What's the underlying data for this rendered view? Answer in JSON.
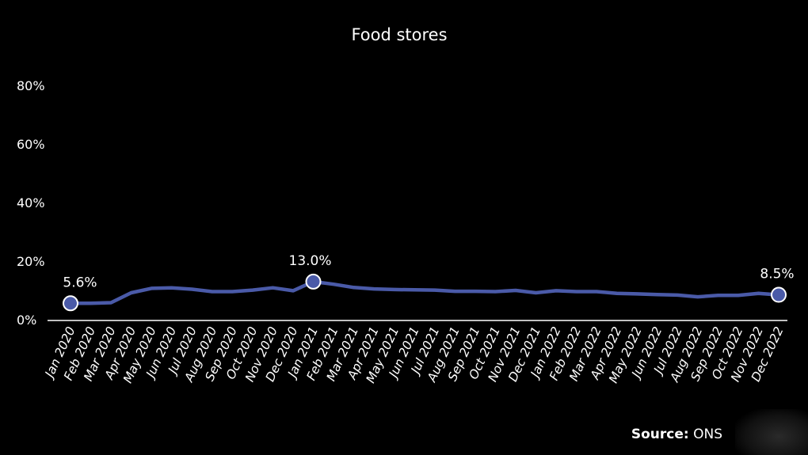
{
  "chart_data": {
    "type": "line",
    "title": "Food stores",
    "xlabel": "",
    "ylabel": "",
    "ylim": [
      0,
      80
    ],
    "yticks": [
      "0%",
      "20%",
      "40%",
      "60%",
      "80%"
    ],
    "grid": false,
    "categories": [
      "Jan 2020",
      "Feb 2020",
      "Mar 2020",
      "Apr 2020",
      "May 2020",
      "Jun 2020",
      "Jul 2020",
      "Aug 2020",
      "Sep 2020",
      "Oct 2020",
      "Nov 2020",
      "Dec 2020",
      "Jan 2021",
      "Feb 2021",
      "Mar 2021",
      "Apr 2021",
      "May 2021",
      "Jun 2021",
      "Jul 2021",
      "Aug 2021",
      "Sep 2021",
      "Oct 2021",
      "Nov 2021",
      "Dec 2021",
      "Jan 2022",
      "Feb 2022",
      "Mar 2022",
      "Apr 2022",
      "May 2022",
      "Jun 2022",
      "Jul 2022",
      "Aug 2022",
      "Sep 2022",
      "Oct 2022",
      "Nov 2022",
      "Dec 2022"
    ],
    "series": [
      {
        "color": "#4a5aa8",
        "values": [
          5.6,
          5.6,
          5.8,
          9.2,
          10.7,
          10.9,
          10.4,
          9.6,
          9.6,
          10.1,
          10.9,
          9.9,
          13.0,
          12.1,
          11.0,
          10.5,
          10.3,
          10.2,
          10.1,
          9.7,
          9.7,
          9.6,
          10.0,
          9.2,
          9.9,
          9.6,
          9.6,
          9.0,
          8.8,
          8.6,
          8.4,
          7.8,
          8.3,
          8.3,
          9.0,
          8.5
        ]
      }
    ],
    "data_labels": [
      {
        "index": 0,
        "text": "5.6%"
      },
      {
        "index": 12,
        "text": "13.0%"
      },
      {
        "index": 35,
        "text": "8.5%"
      }
    ]
  },
  "source": {
    "label": "Source:",
    "value": "ONS"
  },
  "colors": {
    "background": "#000000",
    "line": "#4a5aa8",
    "marker_fill": "#4a5aa8",
    "marker_stroke": "#ffffff",
    "text": "#ffffff",
    "axis": "#ffffff"
  }
}
